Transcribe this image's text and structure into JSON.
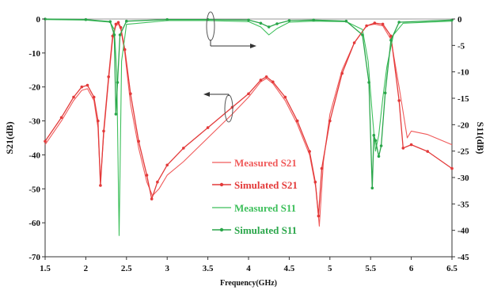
{
  "chart_data": {
    "type": "line",
    "xlabel": "Frequency(GHz)",
    "ylabel_left": "S21(dB)",
    "ylabel_right": "S11(dB)",
    "xlim": [
      1.5,
      6.5
    ],
    "ylim_left": [
      -70,
      0
    ],
    "ylim_right": [
      -45,
      0
    ],
    "x_ticks": [
      "1.5",
      "2",
      "2.5",
      "3",
      "3.5",
      "4",
      "4.5",
      "5",
      "5.5",
      "6",
      "6.5"
    ],
    "y_left_ticks": [
      "0",
      "-10",
      "-20",
      "-30",
      "-40",
      "-50",
      "-60",
      "-70"
    ],
    "y_right_ticks": [
      "0",
      "-5",
      "-10",
      "-15",
      "-20",
      "-25",
      "-30",
      "-35",
      "-40",
      "-45"
    ],
    "grid": false,
    "legend_position": "lower-center",
    "colors": {
      "measured_s21": "#f05a5a",
      "simulated_s21": "#e33a3a",
      "measured_s11": "#3cbf5a",
      "simulated_s11": "#2aa64a",
      "axis": "#333333"
    },
    "series": [
      {
        "name": "Measured S21",
        "axis": "left",
        "x": [
          1.5,
          1.7,
          1.85,
          1.95,
          2.02,
          2.1,
          2.15,
          2.18,
          2.22,
          2.28,
          2.33,
          2.37,
          2.4,
          2.43,
          2.48,
          2.55,
          2.65,
          2.75,
          2.82,
          2.9,
          3.0,
          3.2,
          3.5,
          3.8,
          4.0,
          4.15,
          4.22,
          4.3,
          4.45,
          4.6,
          4.75,
          4.83,
          4.87,
          4.92,
          5.0,
          5.15,
          5.3,
          5.45,
          5.55,
          5.65,
          5.75,
          5.85,
          5.95,
          6.0,
          6.2,
          6.5
        ],
        "y": [
          -37,
          -30,
          -24,
          -21,
          -20.5,
          -24,
          -32,
          -48,
          -34,
          -18,
          -6,
          -2,
          -1.5,
          -3,
          -10,
          -25,
          -38,
          -48,
          -52,
          -50,
          -46,
          -42,
          -35,
          -28,
          -23,
          -18.5,
          -17.5,
          -19,
          -24,
          -31,
          -40,
          -50,
          -61,
          -42,
          -28,
          -15,
          -7,
          -2,
          -1.5,
          -2,
          -6,
          -20,
          -35,
          -33,
          -34,
          -37
        ]
      },
      {
        "name": "Simulated S21",
        "axis": "left",
        "x": [
          1.5,
          1.7,
          1.85,
          1.95,
          2.02,
          2.1,
          2.15,
          2.18,
          2.22,
          2.28,
          2.33,
          2.37,
          2.4,
          2.43,
          2.48,
          2.55,
          2.65,
          2.75,
          2.81,
          2.88,
          3.0,
          3.2,
          3.5,
          3.8,
          4.0,
          4.15,
          4.22,
          4.3,
          4.45,
          4.6,
          4.75,
          4.82,
          4.86,
          4.9,
          5.0,
          5.15,
          5.3,
          5.45,
          5.55,
          5.65,
          5.75,
          5.85,
          5.9,
          6.0,
          6.2,
          6.5
        ],
        "y": [
          -36,
          -29,
          -23,
          -20,
          -19.5,
          -23,
          -30,
          -49,
          -33,
          -17,
          -5,
          -1.5,
          -1,
          -2.5,
          -9,
          -22,
          -36,
          -46,
          -53,
          -48,
          -43,
          -38,
          -32,
          -26,
          -22,
          -18,
          -17,
          -18.5,
          -23,
          -30,
          -39,
          -48,
          -58,
          -44,
          -30,
          -16,
          -7,
          -2,
          -1.2,
          -1.5,
          -5,
          -24,
          -38,
          -37,
          -39,
          -44
        ]
      },
      {
        "name": "Measured S11",
        "axis": "right",
        "x": [
          1.5,
          2.0,
          2.3,
          2.35,
          2.38,
          2.41,
          2.44,
          2.5,
          3.0,
          3.5,
          4.0,
          4.15,
          4.25,
          4.35,
          4.5,
          4.8,
          5.2,
          5.4,
          5.47,
          5.52,
          5.56,
          5.6,
          5.65,
          5.7,
          5.78,
          5.9,
          6.5
        ],
        "y": [
          -0.1,
          -0.2,
          -0.6,
          -2,
          -10,
          -41,
          -8,
          -1,
          -0.3,
          -0.3,
          -0.5,
          -1.5,
          -3,
          -1.8,
          -0.6,
          -0.4,
          -0.5,
          -2,
          -8,
          -18,
          -25,
          -22,
          -15,
          -9,
          -3,
          -0.8,
          -0.4
        ]
      },
      {
        "name": "Simulated S11",
        "axis": "right",
        "x": [
          1.5,
          2.0,
          2.3,
          2.35,
          2.37,
          2.39,
          2.42,
          2.5,
          3.0,
          3.5,
          4.0,
          4.15,
          4.25,
          4.35,
          4.5,
          4.8,
          5.2,
          5.4,
          5.48,
          5.52,
          5.54,
          5.56,
          5.6,
          5.63,
          5.68,
          5.75,
          5.85,
          6.5
        ],
        "y": [
          0,
          -0.1,
          -0.5,
          -3,
          -18,
          -12,
          -3,
          -0.4,
          -0.1,
          -0.1,
          -0.2,
          -0.8,
          -1.5,
          -0.9,
          -0.3,
          -0.2,
          -0.4,
          -3,
          -12,
          -32,
          -22,
          -23,
          -26,
          -24,
          -14,
          -4,
          -0.6,
          -0.2
        ]
      }
    ],
    "annotations": []
  }
}
